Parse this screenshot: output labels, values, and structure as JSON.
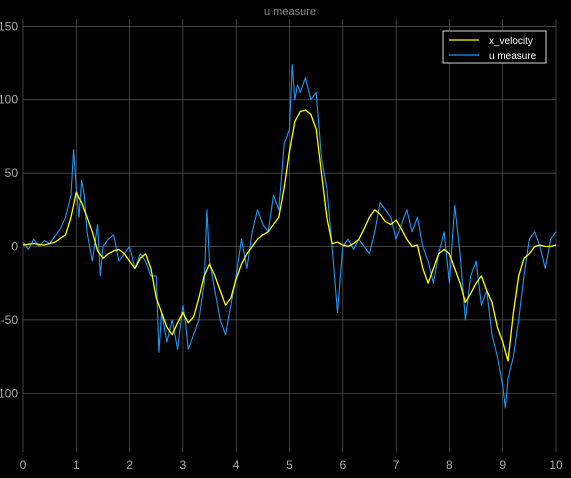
{
  "window": {
    "title": "u measure"
  },
  "chart_data": {
    "type": "line",
    "title": "u measure",
    "xlabel": "",
    "ylabel": "",
    "xlim": [
      0,
      10
    ],
    "ylim": [
      -140,
      155
    ],
    "xticks": [
      0,
      1,
      2,
      3,
      4,
      5,
      6,
      7,
      8,
      9,
      10
    ],
    "xtick_labels": [
      "0",
      "1",
      "2",
      "3",
      "4",
      "5",
      "6",
      "7",
      "8",
      "9",
      "10"
    ],
    "yticks": [
      150,
      100,
      50,
      0,
      -50,
      -100
    ],
    "ytick_labels": [
      "150",
      "100",
      "50",
      "0",
      "-50",
      "-100"
    ],
    "grid": true,
    "legend_position": "top-right",
    "background": "#000000",
    "grid_color": "#5a5a5a",
    "text_color": "#a8a8a8",
    "series": [
      {
        "name": "x_velocity",
        "color": "#ffff00",
        "x": [
          0,
          0.2,
          0.4,
          0.6,
          0.8,
          0.9,
          1.0,
          1.05,
          1.1,
          1.2,
          1.3,
          1.4,
          1.5,
          1.6,
          1.7,
          1.8,
          1.9,
          2.0,
          2.1,
          2.2,
          2.3,
          2.4,
          2.5,
          2.6,
          2.7,
          2.8,
          2.9,
          3.0,
          3.1,
          3.2,
          3.3,
          3.4,
          3.5,
          3.6,
          3.7,
          3.8,
          3.9,
          4.0,
          4.1,
          4.2,
          4.3,
          4.4,
          4.5,
          4.6,
          4.7,
          4.8,
          4.9,
          5.0,
          5.1,
          5.2,
          5.3,
          5.4,
          5.5,
          5.6,
          5.7,
          5.8,
          5.9,
          6.0,
          6.1,
          6.2,
          6.3,
          6.4,
          6.5,
          6.6,
          6.7,
          6.8,
          6.9,
          7.0,
          7.1,
          7.2,
          7.3,
          7.4,
          7.5,
          7.6,
          7.7,
          7.8,
          7.9,
          8.0,
          8.1,
          8.2,
          8.3,
          8.4,
          8.5,
          8.6,
          8.7,
          8.8,
          8.9,
          9.0,
          9.1,
          9.2,
          9.3,
          9.4,
          9.5,
          9.6,
          9.7,
          9.8,
          9.9,
          10.0
        ],
        "y": [
          1,
          2,
          1,
          3,
          8,
          20,
          37,
          33,
          30,
          20,
          10,
          -3,
          -8,
          -5,
          -3,
          -2,
          -5,
          -10,
          -15,
          -8,
          -5,
          -15,
          -35,
          -45,
          -55,
          -60,
          -52,
          -45,
          -52,
          -48,
          -35,
          -20,
          -12,
          -20,
          -30,
          -40,
          -35,
          -22,
          -12,
          -5,
          0,
          5,
          8,
          10,
          15,
          20,
          40,
          65,
          85,
          92,
          93,
          90,
          80,
          50,
          20,
          2,
          3,
          1,
          0,
          2,
          5,
          12,
          20,
          25,
          22,
          17,
          15,
          18,
          12,
          5,
          0,
          1,
          -15,
          -25,
          -15,
          -5,
          -2,
          -5,
          -15,
          -25,
          -38,
          -32,
          -25,
          -20,
          -30,
          -38,
          -55,
          -65,
          -78,
          -45,
          -20,
          -8,
          -5,
          0,
          1,
          0,
          0,
          1
        ]
      },
      {
        "name": "u measure",
        "color": "#2196f3",
        "x": [
          0,
          0.1,
          0.2,
          0.3,
          0.4,
          0.5,
          0.6,
          0.7,
          0.8,
          0.9,
          0.95,
          1.0,
          1.05,
          1.1,
          1.15,
          1.2,
          1.3,
          1.4,
          1.45,
          1.5,
          1.6,
          1.7,
          1.8,
          1.9,
          2.0,
          2.1,
          2.2,
          2.3,
          2.4,
          2.5,
          2.55,
          2.6,
          2.7,
          2.8,
          2.9,
          3.0,
          3.05,
          3.1,
          3.2,
          3.3,
          3.4,
          3.45,
          3.5,
          3.6,
          3.7,
          3.8,
          3.9,
          4.0,
          4.1,
          4.2,
          4.3,
          4.4,
          4.5,
          4.6,
          4.7,
          4.8,
          4.9,
          5.0,
          5.05,
          5.1,
          5.15,
          5.2,
          5.3,
          5.4,
          5.5,
          5.6,
          5.7,
          5.8,
          5.9,
          6.0,
          6.1,
          6.2,
          6.3,
          6.4,
          6.5,
          6.6,
          6.7,
          6.8,
          6.9,
          7.0,
          7.1,
          7.2,
          7.3,
          7.4,
          7.5,
          7.6,
          7.7,
          7.8,
          7.9,
          8.0,
          8.1,
          8.2,
          8.3,
          8.4,
          8.5,
          8.6,
          8.7,
          8.8,
          8.9,
          9.0,
          9.05,
          9.1,
          9.2,
          9.3,
          9.4,
          9.5,
          9.6,
          9.7,
          9.8,
          9.9,
          10.0
        ],
        "y": [
          3,
          -2,
          5,
          0,
          4,
          2,
          7,
          12,
          20,
          35,
          66,
          40,
          20,
          45,
          35,
          10,
          -10,
          15,
          -20,
          0,
          5,
          8,
          -10,
          -5,
          0,
          -15,
          -5,
          -10,
          -20,
          -20,
          -72,
          -45,
          -65,
          -50,
          -70,
          -40,
          -52,
          -70,
          -60,
          -50,
          -25,
          25,
          -10,
          -30,
          -50,
          -60,
          -40,
          -20,
          5,
          -15,
          10,
          25,
          15,
          10,
          35,
          25,
          70,
          80,
          124,
          100,
          110,
          105,
          115,
          100,
          105,
          60,
          40,
          0,
          -45,
          0,
          5,
          -2,
          5,
          0,
          -5,
          10,
          30,
          25,
          20,
          5,
          15,
          25,
          10,
          20,
          0,
          -10,
          -25,
          -5,
          10,
          -25,
          28,
          -5,
          -50,
          -20,
          -10,
          -40,
          -30,
          -60,
          -75,
          -95,
          -110,
          -90,
          -75,
          -50,
          -20,
          5,
          10,
          0,
          -15,
          5,
          10
        ]
      }
    ]
  }
}
